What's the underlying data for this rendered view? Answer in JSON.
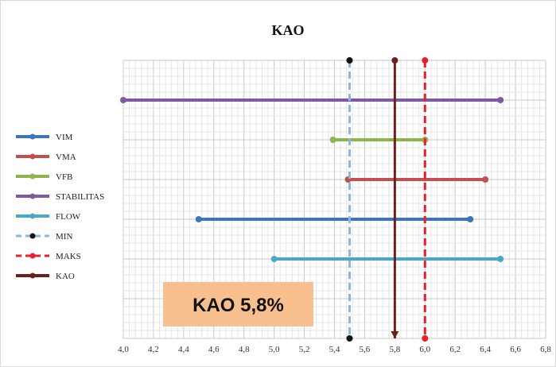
{
  "chart_data": {
    "type": "line",
    "title": "KAO",
    "xlim": [
      4.0,
      6.8
    ],
    "x_ticks": [
      "4,0",
      "4,2",
      "4,4",
      "4,6",
      "4,8",
      "5,0",
      "5,2",
      "5,4",
      "5,6",
      "5,8",
      "6,0",
      "6,2",
      "6,4",
      "6,6",
      "6,8"
    ],
    "grid": true,
    "legend_position": "left",
    "ranges": [
      {
        "name": "STABILITAS",
        "from": 4.0,
        "to": 6.5,
        "color": "#7f5aa2"
      },
      {
        "name": "VFB",
        "from": 5.39,
        "to": 6.0,
        "color": "#8fb34a"
      },
      {
        "name": "VMA",
        "from": 5.49,
        "to": 6.4,
        "color": "#c0504d"
      },
      {
        "name": "VIM",
        "from": 4.5,
        "to": 6.3,
        "color": "#3f74b5"
      },
      {
        "name": "FLOW",
        "from": 5.0,
        "to": 6.5,
        "color": "#4aa8c4"
      }
    ],
    "vertical_lines": [
      {
        "name": "MIN",
        "x": 5.5,
        "color": "#8db4e2",
        "style": "dashed"
      },
      {
        "name": "MAKS",
        "x": 6.0,
        "color": "#e8202a",
        "style": "dashed"
      },
      {
        "name": "KAO",
        "x": 5.8,
        "color": "#6b1f1f",
        "style": "solid"
      }
    ],
    "legend": [
      {
        "name": "VIM",
        "color": "#3f74b5",
        "style": "solid"
      },
      {
        "name": "VMA",
        "color": "#c0504d",
        "style": "solid"
      },
      {
        "name": "VFB",
        "color": "#8fb34a",
        "style": "solid"
      },
      {
        "name": "STABILITAS",
        "color": "#7f5aa2",
        "style": "solid"
      },
      {
        "name": "FLOW",
        "color": "#4aa8c4",
        "style": "solid"
      },
      {
        "name": "MIN",
        "color": "#8db4e2",
        "style": "dashed"
      },
      {
        "name": "MAKS",
        "color": "#e8202a",
        "style": "dashed"
      },
      {
        "name": "KAO",
        "color": "#6b1f1f",
        "style": "solid"
      }
    ],
    "annotation": {
      "text": "KAO 5,8%",
      "color": "#f9c08f"
    }
  }
}
